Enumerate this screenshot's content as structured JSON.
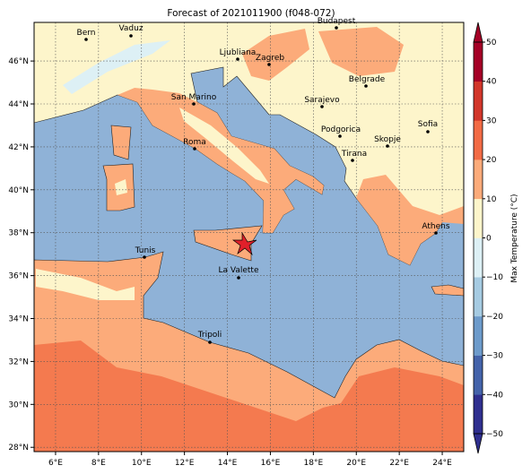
{
  "title": "Forecast of 2021011900 (f048-072)",
  "map": {
    "xlim": [
      5,
      25
    ],
    "ylim": [
      27.8,
      47.8
    ],
    "xticks": [
      {
        "value": 6,
        "label": "6°E"
      },
      {
        "value": 8,
        "label": "8°E"
      },
      {
        "value": 10,
        "label": "10°E"
      },
      {
        "value": 12,
        "label": "12°E"
      },
      {
        "value": 14,
        "label": "14°E"
      },
      {
        "value": 16,
        "label": "16°E"
      },
      {
        "value": 18,
        "label": "18°E"
      },
      {
        "value": 20,
        "label": "20°E"
      },
      {
        "value": 22,
        "label": "22°E"
      },
      {
        "value": 24,
        "label": "24°E"
      }
    ],
    "yticks": [
      {
        "value": 28,
        "label": "28°N"
      },
      {
        "value": 30,
        "label": "30°N"
      },
      {
        "value": 32,
        "label": "32°N"
      },
      {
        "value": 34,
        "label": "34°N"
      },
      {
        "value": 36,
        "label": "36°N"
      },
      {
        "value": 38,
        "label": "38°N"
      },
      {
        "value": 40,
        "label": "40°N"
      },
      {
        "value": 42,
        "label": "42°N"
      },
      {
        "value": 44,
        "label": "44°N"
      },
      {
        "value": 46,
        "label": "46°N"
      }
    ],
    "cities": [
      "Bern",
      "Vaduz",
      "Ljubliana",
      "Zagreb",
      "Budapest",
      "Belgrade",
      "Sarajevo",
      "San Marino",
      "Sofia",
      "Podgorica",
      "Skopje",
      "Roma",
      "Tirana",
      "Athens",
      "Tunis",
      "La Valette",
      "Tripoli"
    ]
  },
  "colorbar": {
    "label": "Max Temperature (°C)",
    "lim": [
      -50,
      50
    ],
    "ticks": [
      {
        "value": -50,
        "label": "−50"
      },
      {
        "value": -40,
        "label": "−40"
      },
      {
        "value": -30,
        "label": "−30"
      },
      {
        "value": -20,
        "label": "−20"
      },
      {
        "value": -10,
        "label": "−10"
      },
      0,
      10,
      20,
      30,
      40,
      50
    ],
    "colors": [
      "#2f2f8f",
      "#4463aa",
      "#6d9bcb",
      "#a6cbe2",
      "#ddf0f5",
      "#fdf5cb",
      "#fcab7a",
      "#f26b45",
      "#d2362a",
      "#a50026"
    ]
  }
}
